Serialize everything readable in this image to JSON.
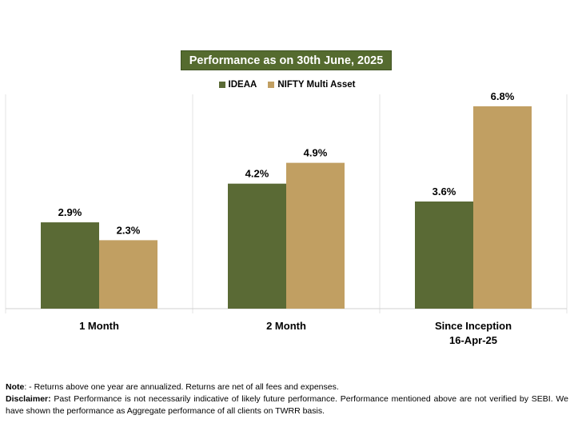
{
  "chart_data": {
    "type": "bar",
    "title": "Performance as on 30th June, 2025",
    "categories": [
      [
        "1 Month"
      ],
      [
        "2 Month"
      ],
      [
        "Since Inception",
        "16-Apr-25"
      ]
    ],
    "series": [
      {
        "name": "IDEAA",
        "values": [
          2.9,
          4.2,
          3.6
        ],
        "labels": [
          "2.9%",
          "4.2%",
          "3.6%"
        ],
        "color": "#5a6a35"
      },
      {
        "name": "NIFTY Multi Asset",
        "values": [
          2.3,
          4.9,
          6.8
        ],
        "labels": [
          "2.3%",
          "4.9%",
          "6.8%"
        ],
        "color": "#c19f62"
      }
    ],
    "ylim": [
      0,
      7.2
    ],
    "grid": false,
    "legend_position": "top-center"
  },
  "notes": {
    "note_label": "Note",
    "note_text": ": - Returns above one year are annualized. Returns are net of all fees and expenses.",
    "disclaimer_label": "Disclaimer:",
    "disclaimer_text": " Past Performance is not necessarily indicative of likely future performance. Performance mentioned above are not verified by SEBI. We have shown the performance as Aggregate performance of all clients on TWRR basis."
  }
}
